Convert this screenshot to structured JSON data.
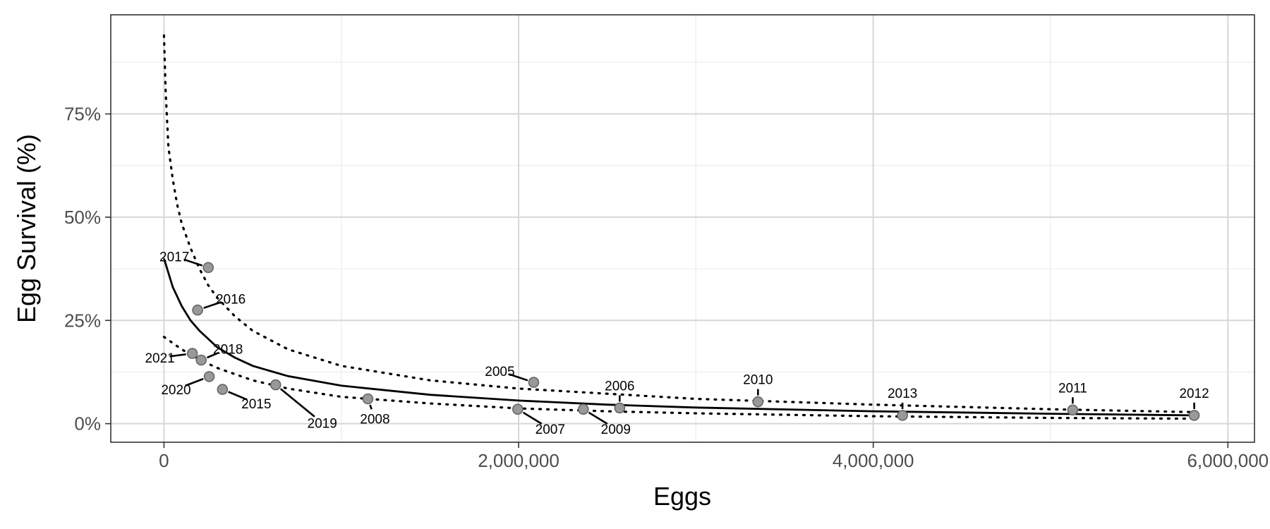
{
  "chart_data": {
    "type": "scatter",
    "xlabel": "Eggs",
    "ylabel": "Egg Survival (%)",
    "xlim": [
      -300000,
      6150000
    ],
    "ylim": [
      -4.5,
      99.0
    ],
    "x_ticks": [
      {
        "value": 0,
        "label": "0"
      },
      {
        "value": 2000000,
        "label": "2,000,000"
      },
      {
        "value": 4000000,
        "label": "4,000,000"
      },
      {
        "value": 6000000,
        "label": "6,000,000"
      }
    ],
    "y_ticks": [
      {
        "value": 0,
        "label": "0%"
      },
      {
        "value": 25,
        "label": "25%"
      },
      {
        "value": 50,
        "label": "50%"
      },
      {
        "value": 75,
        "label": "75%"
      }
    ],
    "grid": true,
    "points": [
      {
        "year": "2005",
        "x": 2085000,
        "y": 10.0
      },
      {
        "year": "2006",
        "x": 2570000,
        "y": 3.8
      },
      {
        "year": "2007",
        "x": 1995000,
        "y": 3.5
      },
      {
        "year": "2008",
        "x": 1150000,
        "y": 6.0
      },
      {
        "year": "2009",
        "x": 2365000,
        "y": 3.5
      },
      {
        "year": "2010",
        "x": 3350000,
        "y": 5.3
      },
      {
        "year": "2011",
        "x": 5125000,
        "y": 3.3
      },
      {
        "year": "2012",
        "x": 5810000,
        "y": 2.0
      },
      {
        "year": "2013",
        "x": 4165000,
        "y": 2.0
      },
      {
        "year": "2015",
        "x": 330000,
        "y": 8.3
      },
      {
        "year": "2016",
        "x": 190000,
        "y": 27.5
      },
      {
        "year": "2017",
        "x": 250000,
        "y": 37.8
      },
      {
        "year": "2018",
        "x": 210000,
        "y": 15.4
      },
      {
        "year": "2019",
        "x": 630000,
        "y": 9.4
      },
      {
        "year": "2020",
        "x": 255000,
        "y": 11.4
      },
      {
        "year": "2021",
        "x": 160000,
        "y": 17.0
      }
    ],
    "fit_line": {
      "x": [
        0,
        50000,
        100000,
        150000,
        200000,
        300000,
        400000,
        500000,
        700000,
        1000000,
        1500000,
        2000000,
        2500000,
        3000000,
        4000000,
        5000000,
        5810000
      ],
      "y": [
        40.0,
        33.0,
        28.5,
        25.0,
        22.5,
        18.5,
        16.0,
        14.0,
        11.5,
        9.2,
        7.0,
        5.6,
        4.6,
        3.9,
        3.0,
        2.4,
        2.0
      ]
    },
    "upper_band": {
      "x": [
        0,
        10000,
        25000,
        50000,
        75000,
        100000,
        150000,
        200000,
        250000,
        300000,
        400000,
        500000,
        700000,
        1000000,
        1500000,
        2000000,
        3000000,
        4000000,
        5000000,
        5810000
      ],
      "y": [
        94.0,
        80.0,
        67.0,
        59.0,
        53.0,
        48.5,
        42.5,
        37.5,
        33.5,
        30.5,
        26.0,
        22.5,
        18.0,
        14.0,
        10.5,
        8.5,
        6.0,
        4.6,
        3.5,
        2.8
      ]
    },
    "lower_band": {
      "x": [
        0,
        50000,
        100000,
        200000,
        300000,
        400000,
        500000,
        700000,
        1000000,
        1500000,
        2000000,
        2500000,
        3000000,
        4000000,
        5000000,
        5810000
      ],
      "y": [
        21.0,
        19.5,
        18.0,
        15.5,
        13.5,
        12.0,
        10.5,
        8.5,
        6.5,
        4.9,
        3.7,
        3.0,
        2.5,
        1.8,
        1.4,
        1.2
      ]
    }
  }
}
